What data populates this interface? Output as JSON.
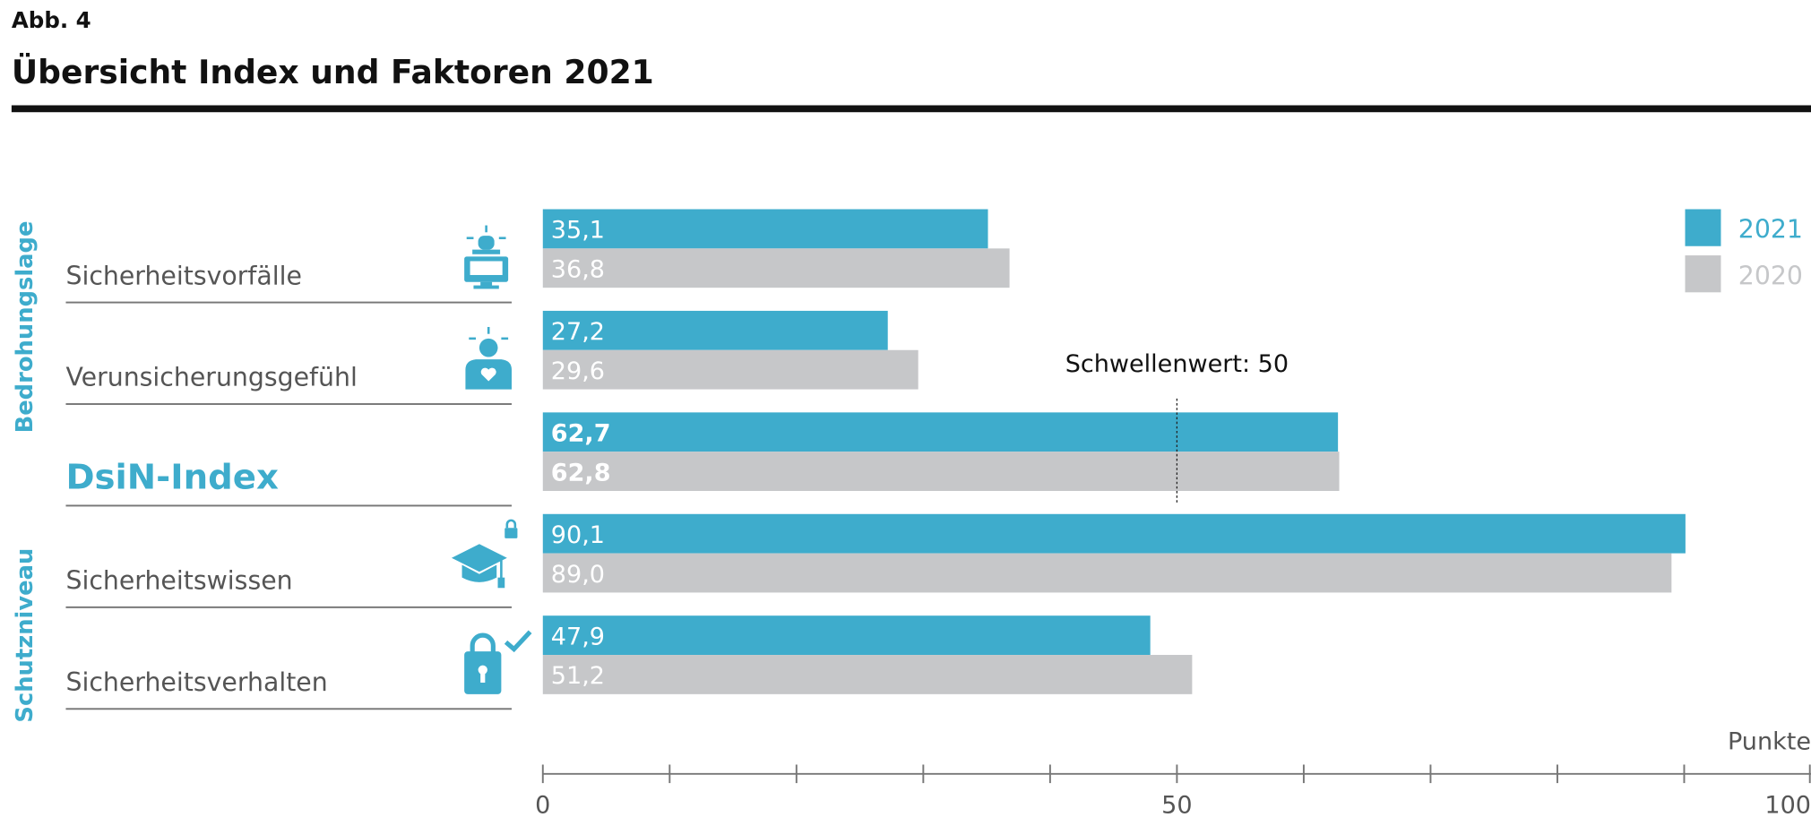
{
  "chart_data": {
    "type": "hbar",
    "figure_label": "Abb. 4",
    "title": "Übersicht Index und Faktoren 2021",
    "categories": [
      "Sicherheitsvorfälle",
      "Verunsicherungsgefühl",
      "DsiN-Index",
      "Sicherheitswissen",
      "Sicherheitsverhalten"
    ],
    "group_labels": [
      "Bedrohungslage",
      "Schutzniveau"
    ],
    "series": [
      {
        "name": "2021",
        "color": "#3eaccc",
        "values": [
          35.1,
          27.2,
          62.7,
          90.1,
          47.9
        ],
        "value_labels": [
          "35,1",
          "27,2",
          "62,7",
          "90,1",
          "47,9"
        ]
      },
      {
        "name": "2020",
        "color": "#c6c7c9",
        "values": [
          36.8,
          29.6,
          62.8,
          89.0,
          51.2
        ],
        "value_labels": [
          "36,8",
          "29,6",
          "62,8",
          "89,0",
          "51,2"
        ]
      }
    ],
    "threshold": {
      "value": 50,
      "label": "Schwellenwert: 50"
    },
    "xlabel": "Punkte",
    "xlim": [
      0,
      100
    ],
    "xticks": [
      0,
      50,
      100
    ],
    "minor_xticks": [
      10,
      20,
      30,
      40,
      60,
      70,
      80,
      90
    ]
  }
}
